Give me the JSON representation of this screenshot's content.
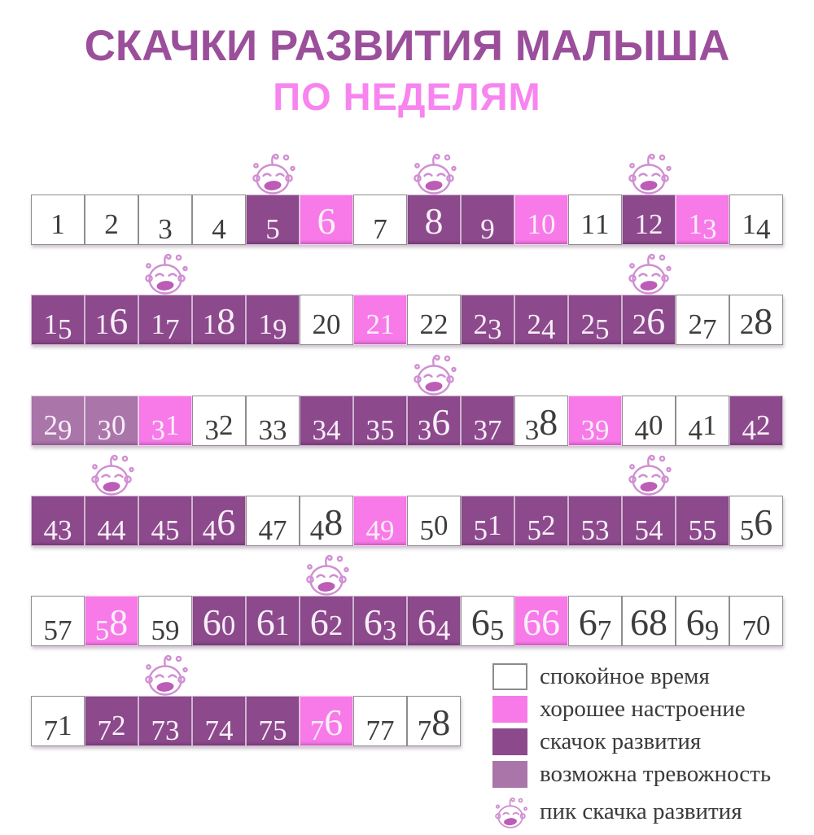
{
  "title": {
    "line1": "СКАЧКИ РАЗВИТИЯ МАЛЫША",
    "line2": "ПО НЕДЕЛЯМ"
  },
  "colors": {
    "title_primary": "#9b4f9b",
    "title_secondary": "#f884ef",
    "leap": "#8c4a8c",
    "good": "#f87ae8",
    "anx": "#aa76aa",
    "calm_border": "#8e8e8e",
    "number_dark": "#3d3d3d",
    "number_light": "#f8eef8",
    "legend_text": "#3a3a3a",
    "baby_stroke": "#d08fd2",
    "baby_mouth": "#bc5cb6"
  },
  "legend": {
    "items": [
      {
        "key": "calm",
        "label": "спокойное время",
        "swatch": "white-box"
      },
      {
        "key": "good",
        "label": "хорошее настроение",
        "swatch": "pink-box"
      },
      {
        "key": "leap",
        "label": "скачок развития",
        "swatch": "dark-purple-box"
      },
      {
        "key": "anx",
        "label": "возможна тревожность",
        "swatch": "mauve-box"
      },
      {
        "key": "peak",
        "label": "пик скачка развития",
        "swatch": "crying-baby-icon"
      }
    ]
  },
  "chart_data": {
    "type": "heatmap",
    "title": "СКАЧКИ РАЗВИТИЯ МАЛЫША ПО НЕДЕЛЯМ",
    "x_range": [
      1,
      78
    ],
    "states": {
      "calm": "спокойное время",
      "good": "хорошее настроение",
      "leap": "скачок развития",
      "anx": "возможна тревожность"
    },
    "peak_weeks": [
      5,
      8,
      12,
      17,
      26,
      36,
      44,
      54,
      62,
      73
    ],
    "rows": [
      [
        {
          "w": 1,
          "s": "calm"
        },
        {
          "w": 2,
          "s": "calm"
        },
        {
          "w": 3,
          "s": "calm"
        },
        {
          "w": 4,
          "s": "calm"
        },
        {
          "w": 5,
          "s": "leap"
        },
        {
          "w": 6,
          "s": "good"
        },
        {
          "w": 7,
          "s": "calm"
        },
        {
          "w": 8,
          "s": "leap"
        },
        {
          "w": 9,
          "s": "leap"
        },
        {
          "w": 10,
          "s": "good"
        },
        {
          "w": 11,
          "s": "calm"
        },
        {
          "w": 12,
          "s": "leap"
        },
        {
          "w": 13,
          "s": "good"
        },
        {
          "w": 14,
          "s": "calm"
        }
      ],
      [
        {
          "w": 15,
          "s": "leap"
        },
        {
          "w": 16,
          "s": "leap"
        },
        {
          "w": 17,
          "s": "leap"
        },
        {
          "w": 18,
          "s": "leap"
        },
        {
          "w": 19,
          "s": "leap"
        },
        {
          "w": 20,
          "s": "calm"
        },
        {
          "w": 21,
          "s": "good"
        },
        {
          "w": 22,
          "s": "calm"
        },
        {
          "w": 23,
          "s": "leap"
        },
        {
          "w": 24,
          "s": "leap"
        },
        {
          "w": 25,
          "s": "leap"
        },
        {
          "w": 26,
          "s": "leap"
        },
        {
          "w": 27,
          "s": "calm"
        },
        {
          "w": 28,
          "s": "calm"
        }
      ],
      [
        {
          "w": 29,
          "s": "anx"
        },
        {
          "w": 30,
          "s": "anx"
        },
        {
          "w": 31,
          "s": "good"
        },
        {
          "w": 32,
          "s": "calm"
        },
        {
          "w": 33,
          "s": "calm"
        },
        {
          "w": 34,
          "s": "leap"
        },
        {
          "w": 35,
          "s": "leap"
        },
        {
          "w": 36,
          "s": "leap"
        },
        {
          "w": 37,
          "s": "leap"
        },
        {
          "w": 38,
          "s": "calm"
        },
        {
          "w": 39,
          "s": "good"
        },
        {
          "w": 40,
          "s": "calm"
        },
        {
          "w": 41,
          "s": "calm"
        },
        {
          "w": 42,
          "s": "leap"
        }
      ],
      [
        {
          "w": 43,
          "s": "leap"
        },
        {
          "w": 44,
          "s": "leap"
        },
        {
          "w": 45,
          "s": "leap"
        },
        {
          "w": 46,
          "s": "leap"
        },
        {
          "w": 47,
          "s": "calm"
        },
        {
          "w": 48,
          "s": "calm"
        },
        {
          "w": 49,
          "s": "good"
        },
        {
          "w": 50,
          "s": "calm"
        },
        {
          "w": 51,
          "s": "leap"
        },
        {
          "w": 52,
          "s": "leap"
        },
        {
          "w": 53,
          "s": "leap"
        },
        {
          "w": 54,
          "s": "leap"
        },
        {
          "w": 55,
          "s": "leap"
        },
        {
          "w": 56,
          "s": "calm"
        }
      ],
      [
        {
          "w": 57,
          "s": "calm"
        },
        {
          "w": 58,
          "s": "good"
        },
        {
          "w": 59,
          "s": "calm"
        },
        {
          "w": 60,
          "s": "leap"
        },
        {
          "w": 61,
          "s": "leap"
        },
        {
          "w": 62,
          "s": "leap"
        },
        {
          "w": 63,
          "s": "leap"
        },
        {
          "w": 64,
          "s": "leap"
        },
        {
          "w": 65,
          "s": "calm"
        },
        {
          "w": 66,
          "s": "good"
        },
        {
          "w": 67,
          "s": "calm"
        },
        {
          "w": 68,
          "s": "calm"
        },
        {
          "w": 69,
          "s": "calm"
        },
        {
          "w": 70,
          "s": "calm"
        }
      ],
      [
        {
          "w": 71,
          "s": "calm"
        },
        {
          "w": 72,
          "s": "leap"
        },
        {
          "w": 73,
          "s": "leap"
        },
        {
          "w": 74,
          "s": "leap"
        },
        {
          "w": 75,
          "s": "leap"
        },
        {
          "w": 76,
          "s": "good"
        },
        {
          "w": 77,
          "s": "calm"
        },
        {
          "w": 78,
          "s": "calm"
        }
      ]
    ]
  }
}
